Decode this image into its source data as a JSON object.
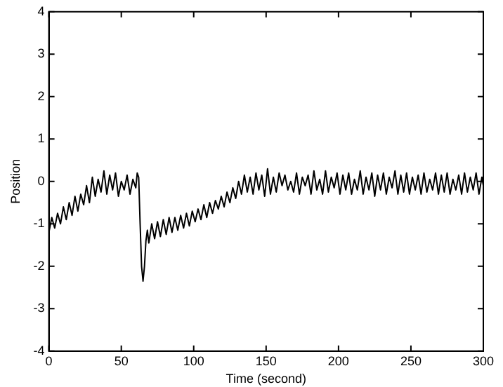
{
  "chart_data": {
    "type": "line",
    "xlabel": "Time (second)",
    "ylabel": "Position",
    "x": [
      0,
      2,
      4,
      6,
      8,
      10,
      12,
      14,
      16,
      18,
      20,
      22,
      24,
      26,
      28,
      30,
      32,
      34,
      36,
      38,
      40,
      42,
      44,
      46,
      48,
      50,
      52,
      54,
      56,
      58,
      60,
      61,
      62,
      63,
      64,
      65,
      66,
      67,
      68,
      69,
      71,
      73,
      75,
      77,
      79,
      81,
      83,
      85,
      87,
      89,
      91,
      93,
      95,
      97,
      99,
      101,
      103,
      105,
      107,
      109,
      111,
      113,
      115,
      117,
      119,
      121,
      123,
      125,
      127,
      129,
      131,
      133,
      135,
      137,
      139,
      141,
      143,
      145,
      147,
      149,
      151,
      153,
      155,
      157,
      159,
      161,
      163,
      165,
      167,
      169,
      171,
      173,
      175,
      177,
      179,
      181,
      183,
      185,
      187,
      189,
      191,
      193,
      195,
      197,
      199,
      201,
      203,
      205,
      207,
      209,
      211,
      213,
      215,
      217,
      219,
      221,
      223,
      225,
      227,
      229,
      231,
      233,
      235,
      237,
      239,
      241,
      243,
      245,
      247,
      249,
      251,
      253,
      255,
      257,
      259,
      261,
      263,
      265,
      267,
      269,
      271,
      273,
      275,
      277,
      279,
      281,
      283,
      285,
      287,
      289,
      291,
      293,
      295,
      297,
      299,
      300
    ],
    "series": [
      {
        "color": "#000000",
        "values": [
          -1.2,
          -0.85,
          -1.1,
          -0.75,
          -1.0,
          -0.6,
          -0.9,
          -0.5,
          -0.8,
          -0.35,
          -0.7,
          -0.3,
          -0.55,
          -0.1,
          -0.5,
          0.1,
          -0.35,
          0.05,
          -0.25,
          0.25,
          -0.3,
          0.15,
          -0.2,
          0.2,
          -0.35,
          0.0,
          -0.2,
          0.15,
          -0.3,
          0.05,
          -0.15,
          0.2,
          0.1,
          -1.0,
          -2.0,
          -2.35,
          -2.0,
          -1.4,
          -1.15,
          -1.45,
          -1.0,
          -1.35,
          -0.95,
          -1.3,
          -0.9,
          -1.25,
          -0.85,
          -1.2,
          -0.85,
          -1.15,
          -0.8,
          -1.1,
          -0.75,
          -1.05,
          -0.7,
          -0.95,
          -0.65,
          -0.9,
          -0.55,
          -0.85,
          -0.5,
          -0.75,
          -0.45,
          -0.65,
          -0.35,
          -0.6,
          -0.25,
          -0.5,
          -0.15,
          -0.4,
          0.0,
          -0.3,
          0.15,
          -0.25,
          0.1,
          -0.3,
          0.2,
          -0.2,
          0.15,
          -0.35,
          0.3,
          -0.3,
          0.1,
          -0.25,
          0.2,
          -0.1,
          0.15,
          -0.2,
          0.0,
          -0.25,
          0.2,
          -0.3,
          0.1,
          -0.1,
          0.15,
          -0.3,
          0.25,
          -0.2,
          0.05,
          -0.3,
          0.25,
          -0.25,
          0.1,
          -0.15,
          0.2,
          -0.3,
          0.15,
          -0.2,
          0.2,
          -0.3,
          0.05,
          -0.2,
          0.25,
          -0.3,
          0.1,
          -0.2,
          0.2,
          -0.35,
          0.15,
          -0.2,
          0.2,
          -0.3,
          0.1,
          -0.15,
          0.25,
          -0.3,
          0.15,
          -0.25,
          0.2,
          -0.3,
          0.1,
          -0.2,
          0.15,
          -0.3,
          0.2,
          -0.25,
          0.05,
          -0.2,
          0.2,
          -0.3,
          0.15,
          -0.25,
          0.2,
          -0.3,
          0.05,
          -0.2,
          0.15,
          -0.3,
          0.2,
          -0.25,
          0.1,
          -0.2,
          0.2,
          -0.3,
          0.1,
          -0.1
        ]
      }
    ],
    "xlim": [
      0,
      300
    ],
    "xticks": [
      0,
      50,
      100,
      150,
      200,
      250,
      300
    ],
    "ylim": [
      -4,
      4
    ],
    "yticks": [
      -4,
      -3,
      -2,
      -1,
      0,
      1,
      2,
      3,
      4
    ],
    "grid": false,
    "legend": false,
    "marker": "none",
    "line_style": "solid"
  }
}
